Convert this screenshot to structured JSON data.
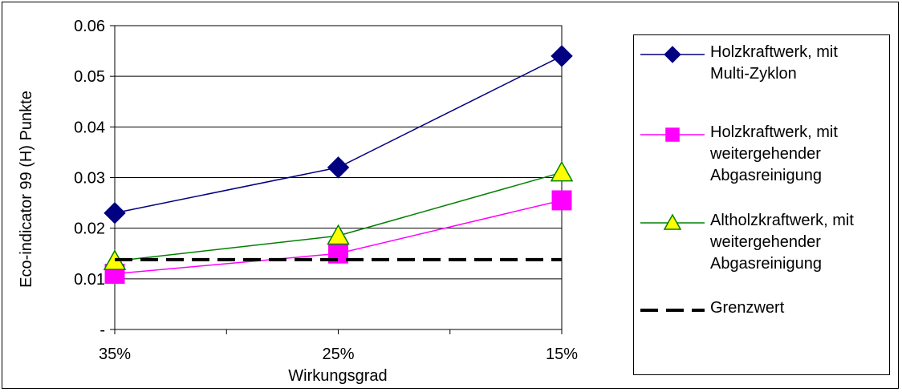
{
  "chart_data": {
    "type": "line",
    "title": "",
    "xlabel": "Wirkungsgrad",
    "ylabel": "Eco-indicator 99 (H) Punkte",
    "categories": [
      "35%",
      "25%",
      "15%"
    ],
    "ylim": [
      0,
      0.06
    ],
    "yticks": [
      "-",
      "0.01",
      "0.02",
      "0.03",
      "0.04",
      "0.05",
      "0.06"
    ],
    "grid": true,
    "legend_position": "right",
    "series": [
      {
        "name": "Holzkraftwerk, mit Multi-Zyklon",
        "legend_lines": [
          "Holzkraftwerk, mit",
          "Multi-Zyklon"
        ],
        "values": [
          0.023,
          0.032,
          0.054
        ],
        "color": "#000080",
        "marker": "diamond",
        "marker_fill": "#000080"
      },
      {
        "name": "Holzkraftwerk, mit weitergehender Abgasreinigung",
        "legend_lines": [
          "Holzkraftwerk, mit",
          "weitergehender",
          "Abgasreinigung"
        ],
        "values": [
          0.011,
          0.015,
          0.0255
        ],
        "color": "#ff00ff",
        "marker": "square",
        "marker_fill": "#ff00ff"
      },
      {
        "name": "Altholzkraftwerk, mit weitergehender Abgasreinigung",
        "legend_lines": [
          "Altholzkraftwerk, mit",
          "weitergehender",
          "Abgasreinigung"
        ],
        "values": [
          0.0135,
          0.0185,
          0.031
        ],
        "color": "#008000",
        "marker": "triangle",
        "marker_fill": "#ffff00"
      },
      {
        "name": "Grenzwert",
        "legend_lines": [
          "Grenzwert"
        ],
        "values": [
          0.0138,
          0.0138,
          0.0138
        ],
        "color": "#000000",
        "marker": "none",
        "dashed": true
      }
    ]
  }
}
